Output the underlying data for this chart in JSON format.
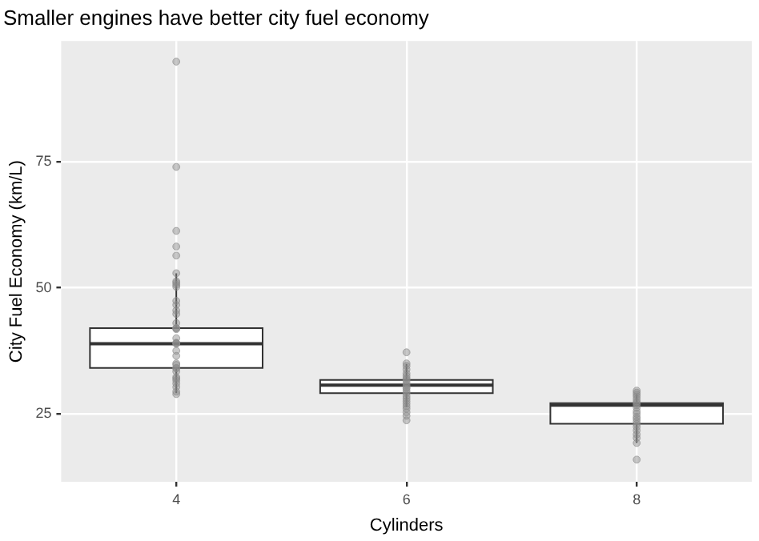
{
  "chart_data": {
    "type": "box",
    "title": "Smaller engines have better city fuel economy",
    "xlabel": "Cylinders",
    "ylabel": "City Fuel Economy (km/L)",
    "categories": [
      "4",
      "6",
      "8"
    ],
    "boxes": [
      {
        "low": 29.1,
        "q1": 34.1,
        "median": 38.9,
        "q3": 42.0,
        "high": 52.9
      },
      {
        "low": 26.3,
        "q1": 29.1,
        "median": 30.7,
        "q3": 31.7,
        "high": 34.9
      },
      {
        "low": 19.2,
        "q1": 23.0,
        "median": 26.7,
        "q3": 27.1,
        "high": 28.8
      }
    ],
    "series": [
      {
        "type": "scatter",
        "color": "#8c8c8c",
        "x": [
          "4",
          "4",
          "4",
          "4",
          "4",
          "4",
          "4",
          "4",
          "4",
          "4",
          "4",
          "4",
          "4",
          "4",
          "4",
          "4",
          "4",
          "4",
          "4",
          "4",
          "4",
          "4",
          "4",
          "4",
          "4",
          "4",
          "4",
          "4",
          "4",
          "4",
          "4",
          "4",
          "4",
          "4",
          "4",
          "4",
          "6",
          "6",
          "6",
          "6",
          "6",
          "6",
          "6",
          "6",
          "6",
          "6",
          "6",
          "6",
          "6",
          "6",
          "6",
          "6",
          "6",
          "6",
          "6",
          "6",
          "6",
          "6",
          "6",
          "8",
          "8",
          "8",
          "8",
          "8",
          "8",
          "8",
          "8",
          "8",
          "8",
          "8",
          "8",
          "8",
          "8",
          "8",
          "8",
          "8",
          "8",
          "8",
          "8",
          "8"
        ],
        "values": [
          94.9,
          74,
          61.3,
          58.2,
          56.4,
          52.9,
          51.3,
          51,
          50.6,
          50.2,
          47.4,
          46.6,
          45.5,
          44.8,
          43,
          42,
          42,
          41.8,
          40,
          39.1,
          39,
          38.9,
          37.5,
          36.5,
          35,
          34.7,
          34.1,
          34,
          33.4,
          32.3,
          32,
          31.6,
          31,
          30.3,
          29.4,
          28.9,
          37.2,
          35,
          34.5,
          33.8,
          33,
          32.5,
          32,
          31.7,
          31.2,
          30.7,
          30.3,
          30,
          29.5,
          29.1,
          28.5,
          28,
          27.5,
          27,
          26.5,
          26,
          25.3,
          24.6,
          23.7,
          29.6,
          29.2,
          28.8,
          28.4,
          27.9,
          27.4,
          27.1,
          26.7,
          26.2,
          25.5,
          25,
          24.4,
          24,
          23.5,
          23,
          22.4,
          21.7,
          20.9,
          20.2,
          19.2,
          15.9
        ]
      }
    ],
    "ylim": [
      11.5,
      99
    ],
    "yticks": [
      25,
      50,
      75
    ],
    "grid": true,
    "legend": false,
    "marker": "circle"
  }
}
